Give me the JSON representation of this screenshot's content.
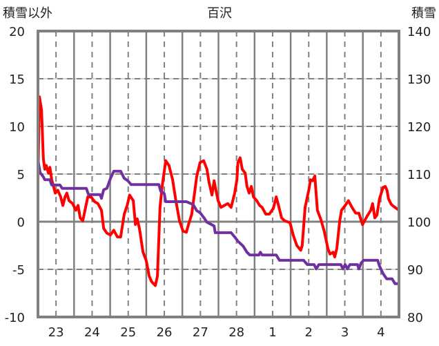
{
  "chart_data": {
    "type": "line",
    "title": "百沢",
    "ylabel_left": "積雪以外",
    "ylabel_right": "積雪",
    "ylim_left": [
      -10,
      20
    ],
    "ylim_right": [
      80,
      140
    ],
    "yticks_left": [
      "20",
      "15",
      "10",
      "5",
      "0",
      "-5",
      "-10"
    ],
    "yticks_right": [
      "140",
      "130",
      "120",
      "110",
      "100",
      "90",
      "80"
    ],
    "xlim_days": [
      0,
      10
    ],
    "xtick_labels": [
      "23",
      "24",
      "25",
      "26",
      "27",
      "28",
      "1",
      "2",
      "3",
      "4"
    ],
    "grid": true,
    "series": [
      {
        "name": "積雪以外",
        "axis": "left",
        "color": "#ff0000",
        "points": [
          [
            0,
            4.4
          ],
          [
            0.04,
            13.1
          ],
          [
            0.1,
            11.7
          ],
          [
            0.15,
            6.6
          ],
          [
            0.19,
            5.5
          ],
          [
            0.23,
            5.9
          ],
          [
            0.29,
            5.1
          ],
          [
            0.33,
            5.7
          ],
          [
            0.38,
            4.4
          ],
          [
            0.48,
            3.0
          ],
          [
            0.55,
            3.3
          ],
          [
            0.63,
            2.6
          ],
          [
            0.69,
            1.7
          ],
          [
            0.75,
            2.6
          ],
          [
            0.8,
            3.0
          ],
          [
            0.86,
            2.2
          ],
          [
            0.96,
            1.9
          ],
          [
            1.05,
            1.2
          ],
          [
            1.11,
            1.7
          ],
          [
            1.17,
            0.4
          ],
          [
            1.24,
            0.1
          ],
          [
            1.32,
            1.5
          ],
          [
            1.38,
            2.6
          ],
          [
            1.47,
            2.6
          ],
          [
            1.57,
            2.1
          ],
          [
            1.66,
            1.9
          ],
          [
            1.76,
            1.2
          ],
          [
            1.82,
            -0.7
          ],
          [
            1.91,
            -1.2
          ],
          [
            2.01,
            -1.4
          ],
          [
            2.1,
            -0.9
          ],
          [
            2.2,
            -1.6
          ],
          [
            2.29,
            -1.6
          ],
          [
            2.39,
            0.8
          ],
          [
            2.47,
            1.7
          ],
          [
            2.54,
            2.8
          ],
          [
            2.64,
            2.2
          ],
          [
            2.7,
            -0.3
          ],
          [
            2.75,
            0.3
          ],
          [
            2.81,
            -0.7
          ],
          [
            2.91,
            -3.2
          ],
          [
            3.0,
            -4.1
          ],
          [
            3.08,
            -5.7
          ],
          [
            3.15,
            -6.3
          ],
          [
            3.25,
            -6.7
          ],
          [
            3.31,
            -5.7
          ],
          [
            3.38,
            1.5
          ],
          [
            3.44,
            3.7
          ],
          [
            3.54,
            6.4
          ],
          [
            3.63,
            5.9
          ],
          [
            3.73,
            4.4
          ],
          [
            3.82,
            2.2
          ],
          [
            3.92,
            0.1
          ],
          [
            4.02,
            -1.0
          ],
          [
            4.11,
            -1.1
          ],
          [
            4.17,
            -0.3
          ],
          [
            4.26,
            0.8
          ],
          [
            4.4,
            4.8
          ],
          [
            4.49,
            6.2
          ],
          [
            4.59,
            6.4
          ],
          [
            4.68,
            5.5
          ],
          [
            4.74,
            4.1
          ],
          [
            4.82,
            2.8
          ],
          [
            4.88,
            4.3
          ],
          [
            4.93,
            3.3
          ],
          [
            4.99,
            2.2
          ],
          [
            5.07,
            1.5
          ],
          [
            5.16,
            1.7
          ],
          [
            5.26,
            1.9
          ],
          [
            5.35,
            1.5
          ],
          [
            5.45,
            3.0
          ],
          [
            5.51,
            4.4
          ],
          [
            5.54,
            6.2
          ],
          [
            5.6,
            6.7
          ],
          [
            5.66,
            5.5
          ],
          [
            5.74,
            5.1
          ],
          [
            5.79,
            3.7
          ],
          [
            5.85,
            3.0
          ],
          [
            5.91,
            3.7
          ],
          [
            5.97,
            2.6
          ],
          [
            6.06,
            2.2
          ],
          [
            6.14,
            1.7
          ],
          [
            6.21,
            1.5
          ],
          [
            6.31,
            0.8
          ],
          [
            6.41,
            0.8
          ],
          [
            6.52,
            1.4
          ],
          [
            6.6,
            2.6
          ],
          [
            6.65,
            1.9
          ],
          [
            6.75,
            0.4
          ],
          [
            6.83,
            0.1
          ],
          [
            6.98,
            -0.1
          ],
          [
            7.07,
            -1.4
          ],
          [
            7.17,
            -2.5
          ],
          [
            7.28,
            -3.0
          ],
          [
            7.32,
            -2.5
          ],
          [
            7.4,
            1.5
          ],
          [
            7.5,
            3.3
          ],
          [
            7.55,
            4.4
          ],
          [
            7.61,
            4.3
          ],
          [
            7.67,
            4.8
          ],
          [
            7.74,
            1.2
          ],
          [
            7.84,
            0.2
          ],
          [
            7.93,
            -1.0
          ],
          [
            8.03,
            -2.8
          ],
          [
            8.09,
            -3.4
          ],
          [
            8.18,
            -3.2
          ],
          [
            8.22,
            -3.7
          ],
          [
            8.28,
            -2.8
          ],
          [
            8.36,
            0.1
          ],
          [
            8.41,
            1.2
          ],
          [
            8.51,
            1.7
          ],
          [
            8.6,
            2.2
          ],
          [
            8.7,
            1.5
          ],
          [
            8.8,
            0.9
          ],
          [
            8.89,
            0.9
          ],
          [
            8.99,
            -0.3
          ],
          [
            9.02,
            -0.1
          ],
          [
            9.12,
            0.6
          ],
          [
            9.22,
            1.2
          ],
          [
            9.27,
            1.9
          ],
          [
            9.33,
            0.4
          ],
          [
            9.39,
            0.7
          ],
          [
            9.46,
            2.4
          ],
          [
            9.56,
            3.6
          ],
          [
            9.62,
            3.7
          ],
          [
            9.67,
            3.3
          ],
          [
            9.71,
            2.4
          ],
          [
            9.79,
            1.8
          ],
          [
            9.89,
            1.5
          ],
          [
            10.0,
            1.2
          ]
        ]
      },
      {
        "name": "積雪",
        "axis": "right",
        "color": "#7030a0",
        "points": [
          [
            0,
            112.9
          ],
          [
            0.06,
            110.3
          ],
          [
            0.15,
            109.4
          ],
          [
            0.19,
            108.8
          ],
          [
            0.33,
            108.8
          ],
          [
            0.38,
            107.7
          ],
          [
            0.61,
            107.7
          ],
          [
            0.67,
            107.0
          ],
          [
            1.34,
            107.0
          ],
          [
            1.4,
            105.7
          ],
          [
            1.72,
            105.7
          ],
          [
            1.76,
            104.9
          ],
          [
            1.82,
            106.7
          ],
          [
            1.91,
            107.0
          ],
          [
            2.01,
            109.1
          ],
          [
            2.1,
            110.6
          ],
          [
            2.29,
            110.6
          ],
          [
            2.39,
            109.1
          ],
          [
            2.49,
            108.6
          ],
          [
            2.58,
            107.8
          ],
          [
            3.35,
            107.8
          ],
          [
            3.4,
            106.4
          ],
          [
            3.5,
            105.9
          ],
          [
            3.54,
            104.2
          ],
          [
            4.11,
            104.2
          ],
          [
            4.3,
            103.6
          ],
          [
            4.4,
            102.3
          ],
          [
            4.49,
            101.9
          ],
          [
            4.59,
            100.9
          ],
          [
            4.68,
            99.9
          ],
          [
            4.88,
            99.1
          ],
          [
            4.91,
            97.7
          ],
          [
            5.35,
            97.7
          ],
          [
            5.45,
            96.8
          ],
          [
            5.54,
            95.9
          ],
          [
            5.68,
            94.9
          ],
          [
            5.79,
            93.6
          ],
          [
            5.87,
            93.0
          ],
          [
            6.12,
            93.0
          ],
          [
            6.16,
            93.6
          ],
          [
            6.21,
            93.0
          ],
          [
            6.6,
            93.0
          ],
          [
            6.69,
            91.9
          ],
          [
            7.36,
            91.9
          ],
          [
            7.46,
            91.0
          ],
          [
            7.65,
            91.0
          ],
          [
            7.71,
            90.1
          ],
          [
            7.78,
            91.0
          ],
          [
            8.39,
            91.0
          ],
          [
            8.45,
            90.1
          ],
          [
            8.51,
            91.0
          ],
          [
            8.57,
            90.1
          ],
          [
            8.64,
            91.0
          ],
          [
            8.85,
            91.0
          ],
          [
            8.89,
            90.1
          ],
          [
            8.95,
            91.3
          ],
          [
            9.02,
            91.9
          ],
          [
            9.41,
            91.9
          ],
          [
            9.46,
            90.7
          ],
          [
            9.56,
            89.1
          ],
          [
            9.66,
            88.0
          ],
          [
            9.81,
            88.0
          ],
          [
            9.89,
            87.0
          ],
          [
            10.0,
            87.0
          ]
        ]
      }
    ]
  }
}
